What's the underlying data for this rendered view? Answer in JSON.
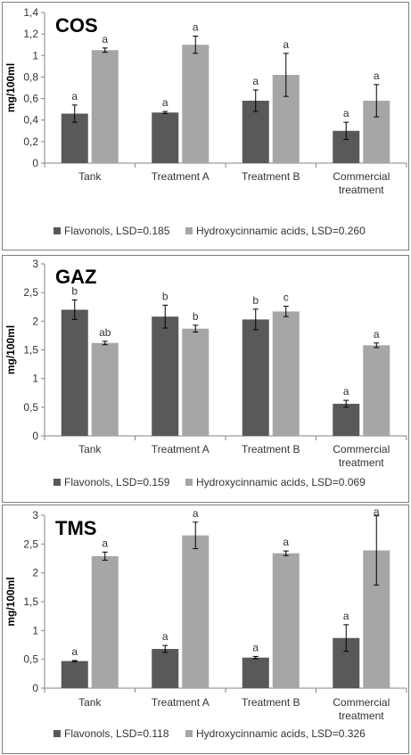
{
  "chart_data": [
    {
      "type": "bar",
      "title": "COS",
      "ylabel": "mg/100ml",
      "ylim": [
        0,
        1.4
      ],
      "yticks": [
        "0",
        "0,2",
        "0,4",
        "0,6",
        "0,8",
        "1",
        "1,2",
        "1,4"
      ],
      "categories": [
        "Tank",
        "Treatment A",
        "Treatment B",
        "Commercial|treatment"
      ],
      "series": [
        {
          "name": "Flavonols, LSD=0.185",
          "color": "#595959",
          "values": [
            0.46,
            0.47,
            0.58,
            0.3
          ],
          "errors": [
            0.08,
            0.01,
            0.1,
            0.08
          ],
          "labels": [
            "a",
            "a",
            "a",
            "a"
          ]
        },
        {
          "name": "Hydroxycinnamic acids, LSD=0.260",
          "color": "#a6a6a6",
          "values": [
            1.05,
            1.1,
            0.82,
            0.58
          ],
          "errors": [
            0.02,
            0.08,
            0.2,
            0.15
          ],
          "labels": [
            "a",
            "a",
            "a",
            "a"
          ]
        }
      ],
      "legend_position": "bottom"
    },
    {
      "type": "bar",
      "title": "GAZ",
      "ylabel": "mg/100ml",
      "ylim": [
        0,
        3
      ],
      "yticks": [
        "0",
        "0,5",
        "1",
        "1,5",
        "2",
        "2,5",
        "3"
      ],
      "categories": [
        "Tank",
        "Treatment A",
        "Treatment B",
        "Commercial|treatment"
      ],
      "series": [
        {
          "name": "Flavonols,  LSD=0.159",
          "color": "#595959",
          "values": [
            2.2,
            2.08,
            2.03,
            0.56
          ],
          "errors": [
            0.17,
            0.2,
            0.18,
            0.06
          ],
          "labels": [
            "b",
            "b",
            "b",
            "a"
          ]
        },
        {
          "name": "Hydroxycinnamic acids, LSD=0.069",
          "color": "#a6a6a6",
          "values": [
            1.62,
            1.87,
            2.17,
            1.58
          ],
          "errors": [
            0.03,
            0.06,
            0.09,
            0.04
          ],
          "labels": [
            "ab",
            "b",
            "c",
            "a"
          ]
        }
      ],
      "legend_position": "bottom"
    },
    {
      "type": "bar",
      "title": "TMS",
      "ylabel": "mg/100ml",
      "ylim": [
        0,
        3
      ],
      "yticks": [
        "0",
        "0,5",
        "1",
        "1,5",
        "2",
        "2,5",
        "3"
      ],
      "categories": [
        "Tank",
        "Treatment A",
        "Treatment B",
        "Commercial|treatment"
      ],
      "series": [
        {
          "name": "Flavonols, LSD=0.118",
          "color": "#595959",
          "values": [
            0.47,
            0.68,
            0.53,
            0.87
          ],
          "errors": [
            0.01,
            0.06,
            0.02,
            0.23
          ],
          "labels": [
            "a",
            "a",
            "a",
            "a"
          ]
        },
        {
          "name": "Hydroxycinnamic acids, LSD=0.326",
          "color": "#a6a6a6",
          "values": [
            2.29,
            2.65,
            2.34,
            2.39
          ],
          "errors": [
            0.07,
            0.23,
            0.04,
            0.6
          ],
          "labels": [
            "a",
            "a",
            "a",
            "a"
          ]
        }
      ],
      "legend_position": "bottom"
    }
  ]
}
